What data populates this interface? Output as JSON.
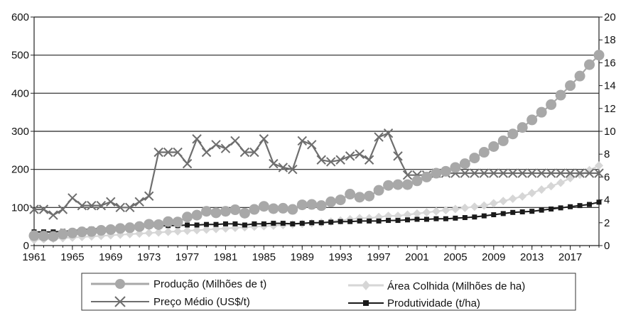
{
  "chart_data": {
    "type": "line",
    "title": "",
    "xlabel": "",
    "ylabel": "",
    "y2label": "",
    "x_years": [
      1961,
      1962,
      1963,
      1964,
      1965,
      1966,
      1967,
      1968,
      1969,
      1970,
      1971,
      1972,
      1973,
      1974,
      1975,
      1976,
      1977,
      1978,
      1979,
      1980,
      1981,
      1982,
      1983,
      1984,
      1985,
      1986,
      1987,
      1988,
      1989,
      1990,
      1991,
      1992,
      1993,
      1994,
      1995,
      1996,
      1997,
      1998,
      1999,
      2000,
      2001,
      2002,
      2003,
      2004,
      2005,
      2006,
      2007,
      2008,
      2009,
      2010,
      2011,
      2012,
      2013,
      2014,
      2015,
      2016,
      2017,
      2018,
      2019,
      2020
    ],
    "x_tick_labels": [
      "1961",
      "1965",
      "1969",
      "1973",
      "1977",
      "1981",
      "1985",
      "1989",
      "1993",
      "1997",
      "2001",
      "2005",
      "2009",
      "2013",
      "2017"
    ],
    "x_tick_years": [
      1961,
      1965,
      1969,
      1973,
      1977,
      1981,
      1985,
      1989,
      1993,
      1997,
      2001,
      2005,
      2009,
      2013,
      2017
    ],
    "xlim": [
      1961,
      2020
    ],
    "ylim_left": [
      0,
      600
    ],
    "y_left_ticks": [
      "0",
      "100",
      "200",
      "300",
      "400",
      "500",
      "600"
    ],
    "ylim_right": [
      0,
      20
    ],
    "y_right_ticks": [
      "0",
      "2",
      "4",
      "6",
      "8",
      "10",
      "12",
      "14",
      "16",
      "18",
      "20"
    ],
    "grid": "horizontal",
    "legend_position": "bottom",
    "series": [
      {
        "name": "Produção (Milhões de t)",
        "axis": "left",
        "marker": "circle",
        "color": "#a8a8a8",
        "values": [
          26,
          25,
          24,
          30,
          33,
          36,
          37,
          40,
          42,
          45,
          47,
          50,
          56,
          55,
          63,
          62,
          75,
          80,
          90,
          86,
          90,
          94,
          85,
          95,
          103,
          97,
          98,
          95,
          107,
          108,
          105,
          115,
          120,
          135,
          127,
          130,
          145,
          158,
          160,
          160,
          170,
          180,
          190,
          195,
          205,
          215,
          230,
          245,
          260,
          275,
          293,
          310,
          330,
          350,
          370,
          395,
          420,
          445,
          475,
          500
        ]
      },
      {
        "name": "Área Colhida (Milhões de ha)",
        "axis": "right",
        "marker": "diamond",
        "color": "#d6d6d6",
        "values": [
          0.5,
          0.55,
          0.6,
          0.65,
          0.7,
          0.75,
          0.8,
          0.85,
          0.9,
          0.95,
          1.0,
          1.05,
          1.1,
          1.15,
          1.2,
          1.25,
          1.3,
          1.35,
          1.4,
          1.45,
          1.5,
          1.55,
          1.6,
          1.65,
          1.7,
          1.75,
          1.8,
          1.85,
          1.9,
          1.95,
          2.0,
          2.1,
          2.2,
          2.3,
          2.4,
          2.4,
          2.5,
          2.6,
          2.6,
          2.7,
          2.8,
          2.9,
          3.0,
          3.1,
          3.2,
          3.3,
          3.4,
          3.5,
          3.7,
          3.9,
          4.1,
          4.3,
          4.6,
          4.9,
          5.2,
          5.5,
          5.9,
          6.2,
          6.6,
          7.0
        ]
      },
      {
        "name": "Preço Médio (US$/t)",
        "axis": "left",
        "marker": "x",
        "color": "#6e6e6e",
        "values": [
          95,
          95,
          80,
          95,
          125,
          105,
          105,
          105,
          115,
          100,
          100,
          115,
          130,
          245,
          245,
          245,
          215,
          280,
          245,
          265,
          255,
          275,
          245,
          245,
          280,
          215,
          205,
          200,
          275,
          265,
          225,
          220,
          225,
          235,
          240,
          225,
          285,
          295,
          235,
          185,
          185,
          185,
          190,
          190,
          190,
          190,
          190,
          190,
          190,
          190,
          190,
          190,
          190,
          190,
          190,
          190,
          190,
          190,
          190,
          190
        ]
      },
      {
        "name": "Produtividade (t/ha)",
        "axis": "right",
        "marker": "square",
        "color": "#1a1a1a",
        "values": [
          1.2,
          1.2,
          1.2,
          1.25,
          1.3,
          1.4,
          1.45,
          1.5,
          1.55,
          1.55,
          1.6,
          1.65,
          1.7,
          1.7,
          1.75,
          1.75,
          1.8,
          1.8,
          1.85,
          1.85,
          1.9,
          1.9,
          1.8,
          1.9,
          1.9,
          1.95,
          1.95,
          1.9,
          1.95,
          2.0,
          2.0,
          2.05,
          2.1,
          2.1,
          2.15,
          2.15,
          2.15,
          2.2,
          2.2,
          2.25,
          2.3,
          2.3,
          2.35,
          2.35,
          2.4,
          2.45,
          2.5,
          2.6,
          2.7,
          2.8,
          2.9,
          2.95,
          3.0,
          3.1,
          3.2,
          3.3,
          3.4,
          3.5,
          3.6,
          3.8
        ]
      }
    ]
  },
  "legend": {
    "prod_label": "Produção (Milhões de t)",
    "area_label": "Área Colhida (Milhões de ha)",
    "preco_label": "Preço Médio (US$/t)",
    "produt_label": "Produtividade (t/ha)"
  }
}
